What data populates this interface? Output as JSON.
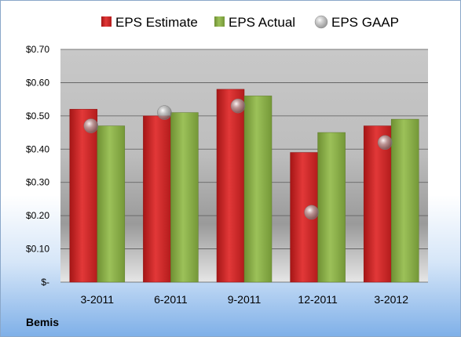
{
  "company": "Bemis",
  "colors": {
    "estimate": "#d42a2a",
    "actual": "#8cb048",
    "gaap": "#a9a9a9"
  },
  "chart_data": {
    "type": "bar",
    "categories": [
      "3-2011",
      "6-2011",
      "9-2011",
      "12-2011",
      "3-2012"
    ],
    "series": [
      {
        "name": "EPS Estimate",
        "kind": "bar",
        "values": [
          0.52,
          0.5,
          0.58,
          0.39,
          0.47
        ]
      },
      {
        "name": "EPS Actual",
        "kind": "bar",
        "values": [
          0.47,
          0.51,
          0.56,
          0.45,
          0.49
        ]
      },
      {
        "name": "EPS GAAP",
        "kind": "marker",
        "values": [
          0.47,
          0.51,
          0.53,
          0.21,
          0.42
        ]
      }
    ],
    "yticks": [
      "$-",
      "$0.10",
      "$0.20",
      "$0.30",
      "$0.40",
      "$0.50",
      "$0.60",
      "$0.70"
    ],
    "ylim": [
      0,
      0.7
    ],
    "grid": true,
    "legend": "top"
  }
}
